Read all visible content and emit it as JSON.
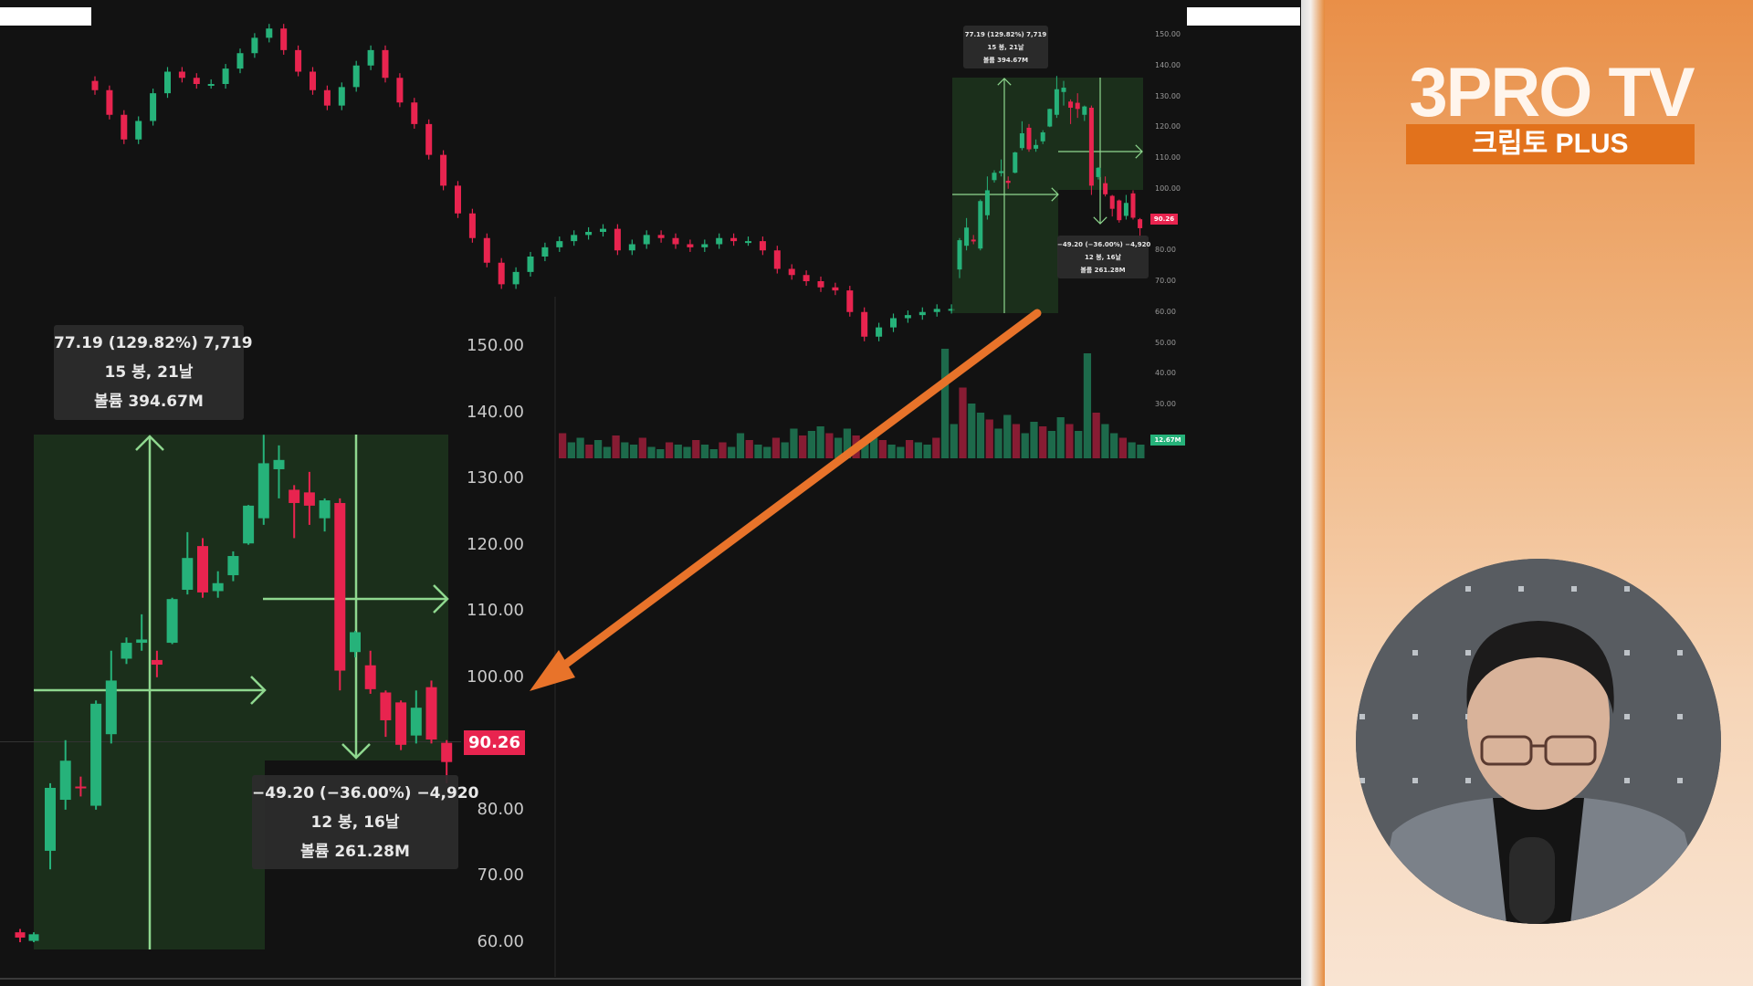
{
  "branding": {
    "title": "3PRO TV",
    "subtitle": "크립토 PLUS"
  },
  "colors": {
    "up": "#26b27a",
    "down": "#e8244f",
    "zone": "#1f3a1f",
    "arrow": "#e8732a",
    "measure_line": "#8fd88f",
    "panel": "#e98f48"
  },
  "inset": {
    "axis_labels": [
      "150.00",
      "140.00",
      "130.00",
      "120.00",
      "110.00",
      "100.00",
      "80.00",
      "70.00",
      "60.00"
    ],
    "axis_values": [
      150,
      140,
      130,
      120,
      110,
      100,
      80,
      70,
      60
    ],
    "last_price": "90.26",
    "rise_tooltip": {
      "line1": "77.19 (129.82%) 7,719",
      "line2": "15 봉, 21날",
      "line3": "볼륨 394.67M"
    },
    "fall_tooltip": {
      "line1": "−49.20 (−36.00%) −4,920",
      "line2": "12 봉, 16날",
      "line3": "볼륨 261.28M"
    }
  },
  "overview": {
    "axis_labels": [
      "150.00",
      "140.00",
      "130.00",
      "120.00",
      "110.00",
      "100.00",
      "80.00",
      "70.00",
      "60.00",
      "50.00",
      "40.00",
      "30.00"
    ],
    "axis_values": [
      150,
      140,
      130,
      120,
      110,
      100,
      80,
      70,
      60,
      50,
      40,
      30
    ],
    "last_price": "90.26",
    "volume_badge": "12.67M",
    "rise_tooltip": {
      "line1": "77.19 (129.82%) 7,719",
      "line2": "15 봉, 21날",
      "line3": "볼륨 394.67M"
    },
    "fall_tooltip": {
      "line1": "−49.20 (−36.00%) −4,920",
      "line2": "12 봉, 16날",
      "line3": "볼륨 261.28M"
    }
  },
  "chart_data": {
    "type": "candlestick",
    "measured_candles": [
      [
        73.8,
        83.3,
        71,
        84
      ],
      [
        81.5,
        87.4,
        80,
        90.5
      ],
      [
        83.5,
        83.3,
        82,
        85
      ],
      [
        80.6,
        96,
        80,
        96.5
      ],
      [
        91.4,
        99.5,
        90,
        104
      ],
      [
        102.8,
        105.2,
        102,
        106
      ],
      [
        105.2,
        105.7,
        104,
        109.5
      ],
      [
        102.6,
        101.9,
        100,
        104
      ],
      [
        105.2,
        111.8,
        105,
        112
      ],
      [
        113.2,
        118,
        112.5,
        121.9
      ],
      [
        119.8,
        112.8,
        112,
        121
      ],
      [
        113,
        114.2,
        112,
        116
      ],
      [
        115.4,
        118.3,
        114.5,
        119
      ],
      [
        120.2,
        125.9,
        120,
        126
      ],
      [
        124,
        132.3,
        123,
        136.6
      ],
      [
        131.4,
        132.8,
        127,
        135
      ],
      [
        128.3,
        126.3,
        121,
        129
      ],
      [
        127.9,
        125.9,
        123,
        131
      ],
      [
        124,
        126.7,
        122,
        127
      ],
      [
        126.3,
        101,
        98,
        127
      ],
      [
        103.8,
        106.8,
        103,
        107
      ],
      [
        101.8,
        98.2,
        97.5,
        104
      ],
      [
        97.7,
        93.5,
        91,
        98
      ],
      [
        96.2,
        89.8,
        89,
        96.5
      ],
      [
        91.2,
        95.4,
        90,
        98
      ],
      [
        98.5,
        90.6,
        90,
        99.5
      ],
      [
        90.1,
        87.2,
        84,
        90.5
      ]
    ],
    "candle_fields": [
      "open",
      "close",
      "low",
      "high"
    ],
    "history_closes": [
      132,
      124,
      116,
      122,
      131,
      138,
      136,
      134,
      134,
      139,
      144,
      149,
      152,
      145,
      138,
      132,
      127,
      133,
      140,
      145,
      136,
      128,
      121,
      111,
      101,
      92,
      84,
      76,
      69,
      73,
      78,
      81,
      83,
      85,
      86,
      87,
      80,
      82,
      85,
      84,
      82,
      81,
      82,
      84,
      83,
      83,
      80,
      74,
      72,
      70,
      68,
      67,
      60,
      52,
      55,
      58,
      59,
      60,
      61,
      61
    ],
    "volume_relative": [
      22,
      14,
      18,
      12,
      16,
      10,
      20,
      14,
      12,
      18,
      10,
      8,
      14,
      12,
      10,
      16,
      12,
      8,
      14,
      10,
      22,
      16,
      12,
      10,
      18,
      14,
      26,
      20,
      24,
      28,
      22,
      18,
      26,
      20,
      14,
      18,
      16,
      12,
      10,
      16,
      14,
      12,
      18,
      96,
      30,
      62,
      48,
      40,
      34,
      26,
      38,
      30,
      22,
      32,
      28,
      24,
      36,
      30,
      24,
      92,
      40,
      30,
      22,
      18,
      14,
      12
    ],
    "rise": {
      "change": 77.19,
      "percent": 129.82,
      "bars": 15,
      "days": 21,
      "volume": "394.67M"
    },
    "fall": {
      "change": -49.2,
      "percent": -36.0,
      "bars": 12,
      "days": 16,
      "volume": "261.28M"
    },
    "last_price": 90.26
  }
}
